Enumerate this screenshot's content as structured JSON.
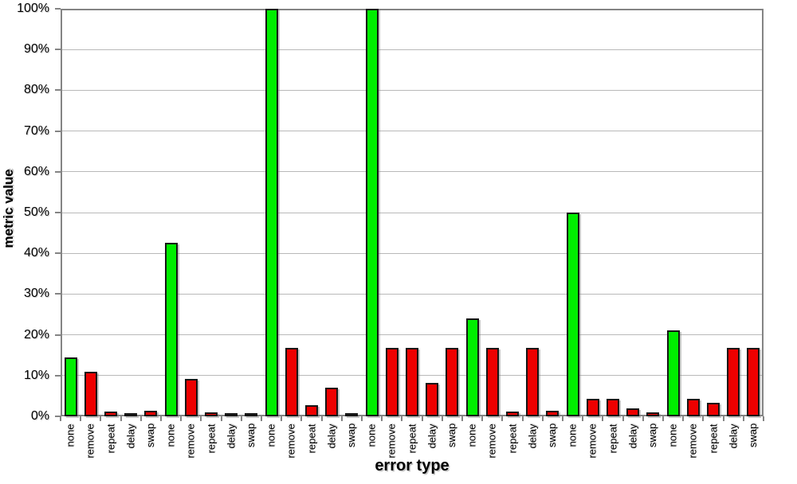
{
  "chart_data": {
    "type": "bar",
    "title": "",
    "xlabel": "error type",
    "ylabel": "metric value",
    "ylim": [
      0,
      100
    ],
    "ytick_step": 10,
    "ytick_labels": [
      "0%",
      "10%",
      "20%",
      "30%",
      "40%",
      "50%",
      "60%",
      "70%",
      "80%",
      "90%",
      "100%"
    ],
    "grid": "horizontal",
    "legend": "none",
    "group_labels": [
      "none",
      "remove",
      "repeat",
      "delay",
      "swap"
    ],
    "num_groups": 7,
    "categories": [
      "none",
      "remove",
      "repeat",
      "delay",
      "swap",
      "none",
      "remove",
      "repeat",
      "delay",
      "swap",
      "none",
      "remove",
      "repeat",
      "delay",
      "swap",
      "none",
      "remove",
      "repeat",
      "delay",
      "swap",
      "none",
      "remove",
      "repeat",
      "delay",
      "swap",
      "none",
      "remove",
      "repeat",
      "delay",
      "swap",
      "none",
      "remove",
      "repeat",
      "delay",
      "swap"
    ],
    "values": [
      14.5,
      11.0,
      1.1,
      0.8,
      1.3,
      42.5,
      9.2,
      1.0,
      0.5,
      0.7,
      100,
      16.7,
      2.8,
      7.0,
      0.8,
      100,
      16.7,
      16.7,
      8.3,
      16.7,
      24.0,
      16.7,
      1.2,
      16.7,
      1.3,
      50.0,
      4.2,
      4.2,
      2.0,
      1.0,
      21.0,
      4.2,
      3.3,
      16.7,
      16.7
    ],
    "colors": {
      "none": "#00EE00",
      "error": "#EE0000",
      "axis": "#848484",
      "grid": "#b9b9b9",
      "bar_border": "#161616"
    }
  }
}
